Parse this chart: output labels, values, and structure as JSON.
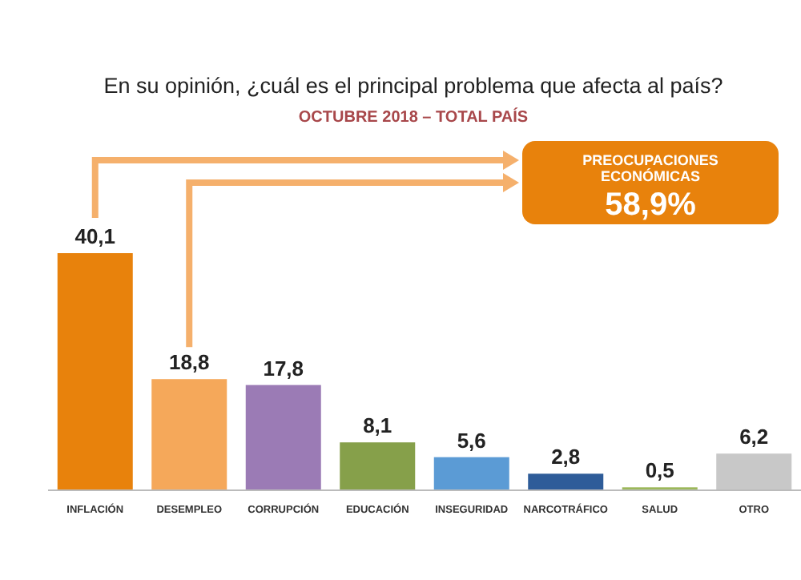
{
  "chart_data": {
    "type": "bar",
    "title": "En su opinión, ¿cuál es el principal problema que afecta al país?",
    "subtitle": "OCTUBRE 2018 – TOTAL PAÍS",
    "categories": [
      "INFLACIÓN",
      "DESEMPLEO",
      "CORRUPCIÓN",
      "EDUCACIÓN",
      "INSEGURIDAD",
      "NARCOTRÁFICO",
      "SALUD",
      "OTRO"
    ],
    "values": [
      40.1,
      18.8,
      17.8,
      8.1,
      5.6,
      2.8,
      0.5,
      6.2
    ],
    "value_labels": [
      "40,1",
      "18,8",
      "17,8",
      "8,1",
      "5,6",
      "2,8",
      "0,5",
      "6,2"
    ],
    "colors": [
      "#e8820c",
      "#f5a85a",
      "#9b7bb5",
      "#86a04a",
      "#5b9bd5",
      "#2e5c99",
      "#9cb85a",
      "#c8c8c8"
    ],
    "annotations": [
      "PREOCUPACIONES ECONÓMICAS",
      "58,9%"
    ]
  }
}
